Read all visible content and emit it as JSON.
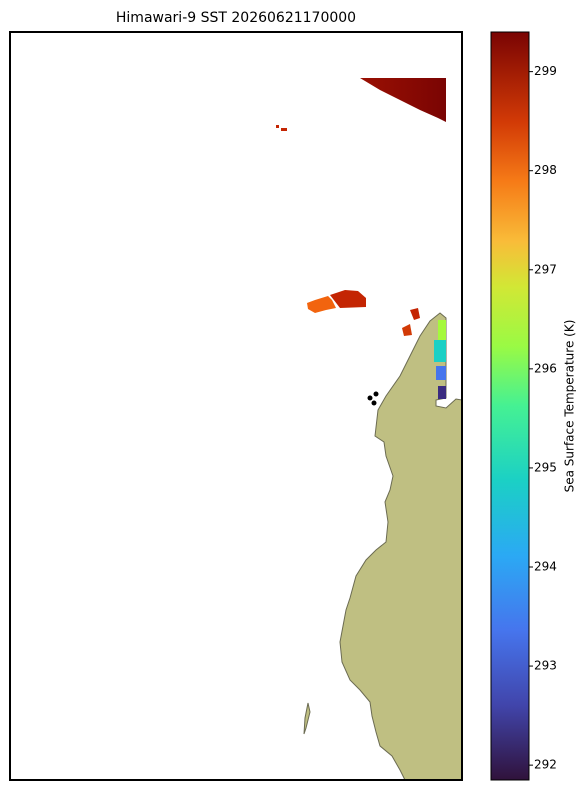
{
  "map": {
    "title": "Himawari-9 SST 20260621170000",
    "colorbar": {
      "label": "Sea Surface Temperature (K)",
      "range": [
        291.85,
        299.4
      ],
      "ticks": [
        292,
        293,
        294,
        295,
        296,
        297,
        298,
        299
      ]
    }
  }
}
